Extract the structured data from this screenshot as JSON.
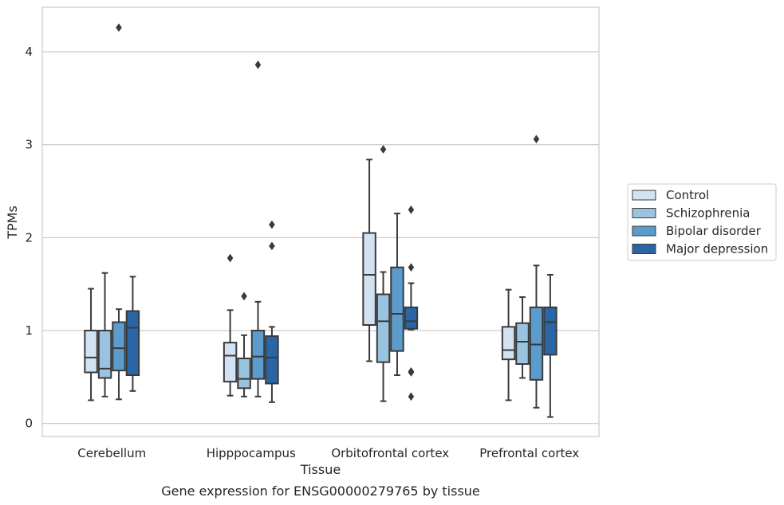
{
  "chart_data": {
    "type": "box",
    "title": "",
    "caption": "Gene expression for ENSG00000279765 by tissue",
    "xlabel": "Tissue",
    "ylabel": "TPMs",
    "ylim": [
      -0.14,
      4.48
    ],
    "yticks": [
      0,
      1,
      2,
      3,
      4
    ],
    "grid": "horizontal",
    "legend_position": "right",
    "categories": [
      "Cerebellum",
      "Hipppocampus",
      "Orbitofrontal cortex",
      "Prefrontal cortex"
    ],
    "series": [
      {
        "name": "Control",
        "color": "#d1e2f2",
        "boxes": [
          {
            "whisker_low": 0.25,
            "q1": 0.55,
            "median": 0.71,
            "q3": 1.0,
            "whisker_high": 1.45,
            "outliers": []
          },
          {
            "whisker_low": 0.3,
            "q1": 0.45,
            "median": 0.73,
            "q3": 0.87,
            "whisker_high": 1.22,
            "outliers": [
              1.78
            ]
          },
          {
            "whisker_low": 0.67,
            "q1": 1.06,
            "median": 1.6,
            "q3": 2.05,
            "whisker_high": 2.84,
            "outliers": []
          },
          {
            "whisker_low": 0.25,
            "q1": 0.69,
            "median": 0.79,
            "q3": 1.04,
            "whisker_high": 1.44,
            "outliers": []
          }
        ]
      },
      {
        "name": "Schizophrenia",
        "color": "#9ac3e0",
        "boxes": [
          {
            "whisker_low": 0.29,
            "q1": 0.49,
            "median": 0.59,
            "q3": 1.0,
            "whisker_high": 1.62,
            "outliers": []
          },
          {
            "whisker_low": 0.29,
            "q1": 0.38,
            "median": 0.48,
            "q3": 0.7,
            "whisker_high": 0.95,
            "outliers": [
              1.37
            ]
          },
          {
            "whisker_low": 0.24,
            "q1": 0.66,
            "median": 1.1,
            "q3": 1.39,
            "whisker_high": 1.63,
            "outliers": [
              2.95
            ]
          },
          {
            "whisker_low": 0.49,
            "q1": 0.64,
            "median": 0.88,
            "q3": 1.08,
            "whisker_high": 1.36,
            "outliers": []
          }
        ]
      },
      {
        "name": "Bipolar disorder",
        "color": "#5b9ccc",
        "boxes": [
          {
            "whisker_low": 0.26,
            "q1": 0.57,
            "median": 0.81,
            "q3": 1.09,
            "whisker_high": 1.23,
            "outliers": [
              4.26
            ]
          },
          {
            "whisker_low": 0.29,
            "q1": 0.48,
            "median": 0.72,
            "q3": 1.0,
            "whisker_high": 1.31,
            "outliers": [
              3.86
            ]
          },
          {
            "whisker_low": 0.52,
            "q1": 0.78,
            "median": 1.18,
            "q3": 1.68,
            "whisker_high": 2.26,
            "outliers": []
          },
          {
            "whisker_low": 0.17,
            "q1": 0.47,
            "median": 0.85,
            "q3": 1.25,
            "whisker_high": 1.7,
            "outliers": [
              3.06
            ]
          }
        ]
      },
      {
        "name": "Major depression",
        "color": "#2a65a6",
        "boxes": [
          {
            "whisker_low": 0.35,
            "q1": 0.52,
            "median": 1.03,
            "q3": 1.21,
            "whisker_high": 1.58,
            "outliers": []
          },
          {
            "whisker_low": 0.23,
            "q1": 0.43,
            "median": 0.71,
            "q3": 0.94,
            "whisker_high": 1.04,
            "outliers": [
              1.91,
              2.14
            ]
          },
          {
            "whisker_low": 1.01,
            "q1": 1.02,
            "median": 1.1,
            "q3": 1.25,
            "whisker_high": 1.51,
            "outliers": [
              0.29,
              0.55,
              0.56,
              1.68,
              2.3
            ]
          },
          {
            "whisker_low": 0.07,
            "q1": 0.74,
            "median": 1.09,
            "q3": 1.25,
            "whisker_high": 1.6,
            "outliers": []
          }
        ]
      }
    ]
  }
}
